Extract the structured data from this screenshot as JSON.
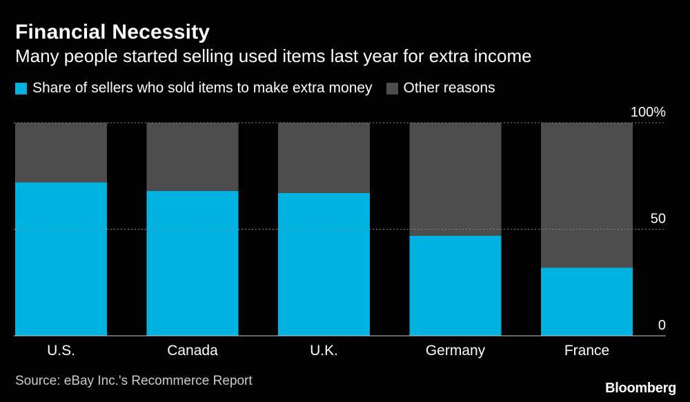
{
  "title": "Financial Necessity",
  "subtitle": "Many people started selling used items last year for extra income",
  "legend": [
    {
      "label": "Share of sellers who sold items to make extra money",
      "color": "#00b2e0"
    },
    {
      "label": "Other reasons",
      "color": "#4d4d4d"
    }
  ],
  "source": "Source: eBay Inc.'s Recommerce Report",
  "brand": "Bloomberg",
  "chart_data": {
    "type": "bar",
    "stacked": true,
    "categories": [
      "U.S.",
      "Canada",
      "U.K.",
      "Germany",
      "France"
    ],
    "series": [
      {
        "name": "Share of sellers who sold items to make extra money",
        "values": [
          72,
          68,
          67,
          47,
          32
        ],
        "color": "#00b2e0"
      },
      {
        "name": "Other reasons",
        "values": [
          28,
          32,
          33,
          53,
          68
        ],
        "color": "#4d4d4d"
      }
    ],
    "ylim": [
      0,
      100
    ],
    "yticks": [
      {
        "value": 0,
        "label": "0"
      },
      {
        "value": 50,
        "label": "50"
      },
      {
        "value": 100,
        "label": "100%"
      }
    ],
    "grid": true,
    "legend_position": "top-left"
  }
}
